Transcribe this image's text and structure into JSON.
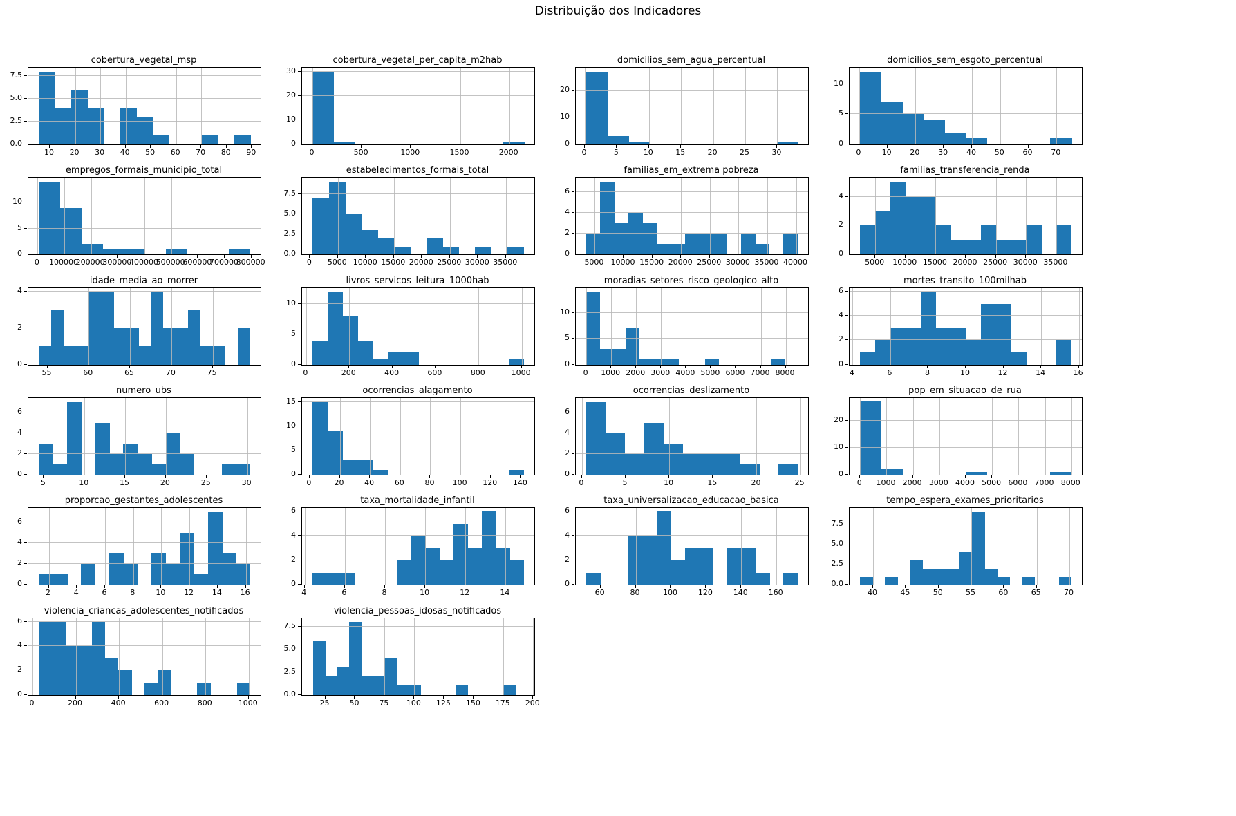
{
  "page_title": "Distribuição dos Indicadores",
  "colors": {
    "bar": "#1f77b4",
    "grid": "#b9b9b9",
    "axis": "#000000"
  },
  "chart_data": [
    {
      "type": "bar",
      "title": "cobertura_vegetal_msp",
      "bin_start": 5.5,
      "bin_width": 6.46,
      "values": [
        8,
        4,
        6,
        4,
        0,
        4,
        3,
        1,
        0,
        0,
        1,
        0,
        1
      ],
      "xlim": [
        1.5,
        93.5
      ],
      "ylim": [
        0,
        8.45
      ],
      "x_ticks": [
        10,
        20,
        30,
        40,
        50,
        60,
        70,
        80,
        90
      ],
      "x_tick_labels": [
        "10",
        "20",
        "30",
        "40",
        "50",
        "60",
        "70",
        "80",
        "90"
      ],
      "y_ticks": [
        0,
        2.5,
        5,
        7.5
      ],
      "y_tick_labels": [
        "0.0",
        "2.5",
        "5.0",
        "7.5"
      ]
    },
    {
      "type": "bar",
      "title": "cobertura_vegetal_per_capita_m2hab",
      "bin_start": 0,
      "bin_width": 215,
      "values": [
        30,
        1,
        0,
        0,
        0,
        0,
        0,
        0,
        0,
        1
      ],
      "xlim": [
        -105,
        2255
      ],
      "ylim": [
        0,
        31.6
      ],
      "x_ticks": [
        0,
        500,
        1000,
        1500,
        2000
      ],
      "x_tick_labels": [
        "0",
        "500",
        "1000",
        "1500",
        "2000"
      ],
      "y_ticks": [
        0,
        10,
        20,
        30
      ],
      "y_tick_labels": [
        "0",
        "10",
        "20",
        "30"
      ]
    },
    {
      "type": "bar",
      "title": "domicilios_sem_agua_percentual",
      "bin_start": 0.2,
      "bin_width": 3.3,
      "values": [
        27,
        3,
        1,
        0,
        0,
        0,
        0,
        0,
        0,
        1
      ],
      "xlim": [
        -1.4,
        34.8
      ],
      "ylim": [
        0,
        28.6
      ],
      "x_ticks": [
        0,
        5,
        10,
        15,
        20,
        25,
        30
      ],
      "x_tick_labels": [
        "0",
        "5",
        "10",
        "15",
        "20",
        "25",
        "30"
      ],
      "y_ticks": [
        0,
        10,
        20
      ],
      "y_tick_labels": [
        "0",
        "10",
        "20"
      ]
    },
    {
      "type": "bar",
      "title": "domicilios_sem_esgoto_percentual",
      "bin_start": 0.3,
      "bin_width": 7.5,
      "values": [
        12,
        7,
        5,
        4,
        2,
        1,
        0,
        0,
        0,
        1
      ],
      "xlim": [
        -3.4,
        79.0
      ],
      "ylim": [
        0,
        12.7
      ],
      "x_ticks": [
        0,
        10,
        20,
        30,
        40,
        50,
        60,
        70
      ],
      "x_tick_labels": [
        "0",
        "10",
        "20",
        "30",
        "40",
        "50",
        "60",
        "70"
      ],
      "y_ticks": [
        0,
        5,
        10
      ],
      "y_tick_labels": [
        "0",
        "5",
        "10"
      ]
    },
    {
      "type": "bar",
      "title": "empregos_formais_municipio_total",
      "bin_start": 5000,
      "bin_width": 79000,
      "values": [
        14,
        9,
        2,
        1,
        1,
        0,
        1,
        0,
        0,
        1
      ],
      "xlim": [
        -34500,
        834500
      ],
      "ylim": [
        0,
        14.8
      ],
      "x_ticks": [
        0,
        100000,
        200000,
        300000,
        400000,
        500000,
        600000,
        700000,
        800000
      ],
      "x_tick_labels": [
        "0",
        "100000",
        "200000",
        "300000",
        "400000",
        "500000",
        "600000",
        "700000",
        "800000"
      ],
      "y_ticks": [
        0,
        5,
        10
      ],
      "y_tick_labels": [
        "0",
        "5",
        "10"
      ]
    },
    {
      "type": "bar",
      "title": "estabelecimentos_formais_total",
      "bin_start": 500,
      "bin_width": 2900,
      "values": [
        7,
        9,
        5,
        3,
        2,
        1,
        0,
        2,
        1,
        0,
        1,
        0,
        1
      ],
      "xlim": [
        -1400,
        40100
      ],
      "ylim": [
        0,
        9.5
      ],
      "x_ticks": [
        0,
        5000,
        10000,
        15000,
        20000,
        25000,
        30000,
        35000
      ],
      "x_tick_labels": [
        "0",
        "5000",
        "10000",
        "15000",
        "20000",
        "25000",
        "30000",
        "35000"
      ],
      "y_ticks": [
        0,
        2.5,
        5,
        7.5
      ],
      "y_tick_labels": [
        "0.0",
        "2.5",
        "5.0",
        "7.5"
      ]
    },
    {
      "type": "bar",
      "title": "familias_em_extrema pobreza",
      "bin_start": 3500,
      "bin_width": 2450,
      "values": [
        2,
        7,
        3,
        4,
        3,
        1,
        1,
        2,
        2,
        2,
        0,
        2,
        1,
        0,
        2
      ],
      "xlim": [
        1700,
        42100
      ],
      "ylim": [
        0,
        7.4
      ],
      "x_ticks": [
        5000,
        10000,
        15000,
        20000,
        25000,
        30000,
        35000,
        40000
      ],
      "x_tick_labels": [
        "5000",
        "10000",
        "15000",
        "20000",
        "25000",
        "30000",
        "35000",
        "40000"
      ],
      "y_ticks": [
        0,
        2,
        4,
        6
      ],
      "y_tick_labels": [
        "0",
        "2",
        "4",
        "6"
      ]
    },
    {
      "type": "bar",
      "title": "familias_transferencia_renda",
      "bin_start": 2500,
      "bin_width": 2500,
      "values": [
        2,
        3,
        5,
        4,
        4,
        2,
        1,
        1,
        2,
        1,
        1,
        2,
        0,
        2
      ],
      "xlim": [
        750,
        39250
      ],
      "ylim": [
        0,
        5.3
      ],
      "x_ticks": [
        5000,
        10000,
        15000,
        20000,
        25000,
        30000,
        35000
      ],
      "x_tick_labels": [
        "5000",
        "10000",
        "15000",
        "20000",
        "25000",
        "30000",
        "35000"
      ],
      "y_ticks": [
        0,
        2,
        4
      ],
      "y_tick_labels": [
        "0",
        "2",
        "4"
      ]
    },
    {
      "type": "bar",
      "title": "idade_media_ao_morrer",
      "bin_start": 54,
      "bin_width": 1.5,
      "values": [
        1,
        3,
        1,
        1,
        4,
        4,
        2,
        2,
        1,
        4,
        2,
        2,
        3,
        1,
        1,
        0,
        2
      ],
      "xlim": [
        52.7,
        80.8
      ],
      "ylim": [
        0,
        4.2
      ],
      "x_ticks": [
        55,
        60,
        65,
        70,
        75
      ],
      "x_tick_labels": [
        "55",
        "60",
        "65",
        "70",
        "75"
      ],
      "y_ticks": [
        0,
        2,
        4
      ],
      "y_tick_labels": [
        "0",
        "2",
        "4"
      ]
    },
    {
      "type": "bar",
      "title": "livros_servicos_leitura_1000hab",
      "bin_start": 30,
      "bin_width": 70,
      "values": [
        4,
        12,
        8,
        4,
        1,
        2,
        2,
        0,
        0,
        0,
        0,
        0,
        0,
        1
      ],
      "xlim": [
        -19,
        1059
      ],
      "ylim": [
        0,
        12.7
      ],
      "x_ticks": [
        0,
        200,
        400,
        600,
        800,
        1000
      ],
      "x_tick_labels": [
        "0",
        "200",
        "400",
        "600",
        "800",
        "1000"
      ],
      "y_ticks": [
        0,
        5,
        10
      ],
      "y_tick_labels": [
        "0",
        "5",
        "10"
      ]
    },
    {
      "type": "bar",
      "title": "moradias_setores_risco_geologico_alto",
      "bin_start": 0,
      "bin_width": 530,
      "values": [
        14,
        3,
        3,
        7,
        1,
        1,
        1,
        0,
        0,
        1,
        0,
        0,
        0,
        0,
        1,
        0
      ],
      "xlim": [
        -420,
        8900
      ],
      "ylim": [
        0,
        14.8
      ],
      "x_ticks": [
        0,
        1000,
        2000,
        3000,
        4000,
        5000,
        6000,
        7000,
        8000
      ],
      "x_tick_labels": [
        "0",
        "1000",
        "2000",
        "3000",
        "4000",
        "5000",
        "6000",
        "7000",
        "8000"
      ],
      "y_ticks": [
        0,
        5,
        10
      ],
      "y_tick_labels": [
        "0",
        "5",
        "10"
      ]
    },
    {
      "type": "bar",
      "title": "mortes_transito_100milhab",
      "bin_start": 4.4,
      "bin_width": 0.8,
      "values": [
        1,
        2,
        3,
        3,
        6,
        3,
        3,
        2,
        5,
        5,
        1,
        0,
        0,
        2
      ],
      "xlim": [
        3.84,
        16.16
      ],
      "ylim": [
        0,
        6.3
      ],
      "x_ticks": [
        4,
        6,
        8,
        10,
        12,
        14,
        16
      ],
      "x_tick_labels": [
        "4",
        "6",
        "8",
        "10",
        "12",
        "14",
        "16"
      ],
      "y_ticks": [
        0,
        2,
        4,
        6
      ],
      "y_tick_labels": [
        "0",
        "2",
        "4",
        "6"
      ]
    },
    {
      "type": "bar",
      "title": "numero_ubs",
      "bin_start": 4.4,
      "bin_width": 1.73,
      "values": [
        3,
        1,
        7,
        0,
        5,
        2,
        3,
        2,
        1,
        4,
        2,
        0,
        0,
        1,
        1
      ],
      "xlim": [
        3.1,
        31.65
      ],
      "ylim": [
        0,
        7.4
      ],
      "x_ticks": [
        5,
        10,
        15,
        20,
        25,
        30
      ],
      "x_tick_labels": [
        "5",
        "10",
        "15",
        "20",
        "25",
        "30"
      ],
      "y_ticks": [
        0,
        2,
        4,
        6
      ],
      "y_tick_labels": [
        "0",
        "2",
        "4",
        "6"
      ]
    },
    {
      "type": "bar",
      "title": "ocorrencias_alagamento",
      "bin_start": 2,
      "bin_width": 10,
      "values": [
        15,
        9,
        3,
        3,
        1,
        0,
        0,
        0,
        0,
        0,
        0,
        0,
        0,
        1
      ],
      "xlim": [
        -5,
        149
      ],
      "ylim": [
        0,
        15.8
      ],
      "x_ticks": [
        0,
        20,
        40,
        60,
        80,
        100,
        120,
        140
      ],
      "x_tick_labels": [
        "0",
        "20",
        "40",
        "60",
        "80",
        "100",
        "120",
        "140"
      ],
      "y_ticks": [
        0,
        5,
        10,
        15
      ],
      "y_tick_labels": [
        "0",
        "5",
        "10",
        "15"
      ]
    },
    {
      "type": "bar",
      "title": "ocorrencias_deslizamento",
      "bin_start": 0.5,
      "bin_width": 2.2,
      "values": [
        7,
        4,
        2,
        5,
        3,
        2,
        2,
        2,
        1,
        0,
        1
      ],
      "xlim": [
        -0.7,
        25.9
      ],
      "ylim": [
        0,
        7.4
      ],
      "x_ticks": [
        0,
        5,
        10,
        15,
        20,
        25
      ],
      "x_tick_labels": [
        "0",
        "5",
        "10",
        "15",
        "20",
        "25"
      ],
      "y_ticks": [
        0,
        2,
        4,
        6
      ],
      "y_tick_labels": [
        "0",
        "2",
        "4",
        "6"
      ]
    },
    {
      "type": "bar",
      "title": "pop_em_situacao_de_rua",
      "bin_start": 0,
      "bin_width": 800,
      "values": [
        27,
        2,
        0,
        0,
        0,
        1,
        0,
        0,
        0,
        1
      ],
      "xlim": [
        -400,
        8400
      ],
      "ylim": [
        0,
        28.4
      ],
      "x_ticks": [
        0,
        1000,
        2000,
        3000,
        4000,
        5000,
        6000,
        7000,
        8000
      ],
      "x_tick_labels": [
        "0",
        "1000",
        "2000",
        "3000",
        "4000",
        "5000",
        "6000",
        "7000",
        "8000"
      ],
      "y_ticks": [
        0,
        10,
        20
      ],
      "y_tick_labels": [
        "0",
        "10",
        "20"
      ]
    },
    {
      "type": "bar",
      "title": "proporcao_gestantes_adolescentes",
      "bin_start": 1.3,
      "bin_width": 1.0,
      "values": [
        1,
        1,
        0,
        2,
        0,
        3,
        2,
        0,
        3,
        2,
        5,
        1,
        7,
        3,
        2
      ],
      "xlim": [
        0.55,
        17.05
      ],
      "ylim": [
        0,
        7.4
      ],
      "x_ticks": [
        2,
        4,
        6,
        8,
        10,
        12,
        14,
        16
      ],
      "x_tick_labels": [
        "2",
        "4",
        "6",
        "8",
        "10",
        "12",
        "14",
        "16"
      ],
      "y_ticks": [
        0,
        2,
        4,
        6
      ],
      "y_tick_labels": [
        "0",
        "2",
        "4",
        "6"
      ]
    },
    {
      "type": "bar",
      "title": "taxa_mortalidade_infantil",
      "bin_start": 4.4,
      "bin_width": 0.7,
      "values": [
        1,
        1,
        1,
        0,
        0,
        0,
        2,
        4,
        3,
        2,
        5,
        3,
        6,
        3,
        2
      ],
      "xlim": [
        3.87,
        15.43
      ],
      "ylim": [
        0,
        6.3
      ],
      "x_ticks": [
        4,
        6,
        8,
        10,
        12,
        14
      ],
      "x_tick_labels": [
        "4",
        "6",
        "8",
        "10",
        "12",
        "14"
      ],
      "y_ticks": [
        0,
        2,
        4,
        6
      ],
      "y_tick_labels": [
        "0",
        "2",
        "4",
        "6"
      ]
    },
    {
      "type": "bar",
      "title": "taxa_universalizacao_educacao_basica",
      "bin_start": 52,
      "bin_width": 8,
      "values": [
        1,
        0,
        0,
        4,
        4,
        6,
        2,
        3,
        3,
        0,
        3,
        3,
        1,
        0,
        1
      ],
      "xlim": [
        46,
        178
      ],
      "ylim": [
        0,
        6.3
      ],
      "x_ticks": [
        60,
        80,
        100,
        120,
        140,
        160
      ],
      "x_tick_labels": [
        "60",
        "80",
        "100",
        "120",
        "140",
        "160"
      ],
      "y_ticks": [
        0,
        2,
        4,
        6
      ],
      "y_tick_labels": [
        "0",
        "2",
        "4",
        "6"
      ]
    },
    {
      "type": "bar",
      "title": "tempo_espera_exames_prioritarios",
      "bin_start": 38,
      "bin_width": 1.9,
      "values": [
        1,
        0,
        1,
        0,
        3,
        2,
        2,
        2,
        4,
        9,
        2,
        1,
        0,
        1,
        0,
        0,
        1
      ],
      "xlim": [
        36.4,
        71.9
      ],
      "ylim": [
        0,
        9.5
      ],
      "x_ticks": [
        40,
        45,
        50,
        55,
        60,
        65,
        70
      ],
      "x_tick_labels": [
        "40",
        "45",
        "50",
        "55",
        "60",
        "65",
        "70"
      ],
      "y_ticks": [
        0,
        2.5,
        5,
        7.5
      ],
      "y_tick_labels": [
        "0.0",
        "2.5",
        "5.0",
        "7.5"
      ]
    },
    {
      "type": "bar",
      "title": "violencia_criancas_adolescentes_notificados",
      "bin_start": 30,
      "bin_width": 61,
      "values": [
        6,
        6,
        4,
        4,
        6,
        3,
        2,
        0,
        1,
        2,
        0,
        0,
        1,
        0,
        0,
        1
      ],
      "xlim": [
        -19,
        1055
      ],
      "ylim": [
        0,
        6.3
      ],
      "x_ticks": [
        0,
        200,
        400,
        600,
        800,
        1000
      ],
      "x_tick_labels": [
        "0",
        "200",
        "400",
        "600",
        "800",
        "1000"
      ],
      "y_ticks": [
        0,
        2,
        4,
        6
      ],
      "y_tick_labels": [
        "0",
        "2",
        "4",
        "6"
      ]
    },
    {
      "type": "bar",
      "title": "violencia_pessoas_idosas_notificados",
      "bin_start": 15,
      "bin_width": 10,
      "values": [
        6,
        2,
        3,
        8,
        2,
        2,
        4,
        1,
        1,
        0,
        0,
        0,
        1,
        0,
        0,
        0,
        1
      ],
      "xlim": [
        5.5,
        201
      ],
      "ylim": [
        0,
        8.45
      ],
      "x_ticks": [
        25,
        50,
        75,
        100,
        125,
        150,
        175,
        200
      ],
      "x_tick_labels": [
        "25",
        "50",
        "75",
        "100",
        "125",
        "150",
        "175",
        "200"
      ],
      "y_ticks": [
        0,
        2.5,
        5,
        7.5
      ],
      "y_tick_labels": [
        "0.0",
        "2.5",
        "5.0",
        "7.5"
      ]
    }
  ]
}
